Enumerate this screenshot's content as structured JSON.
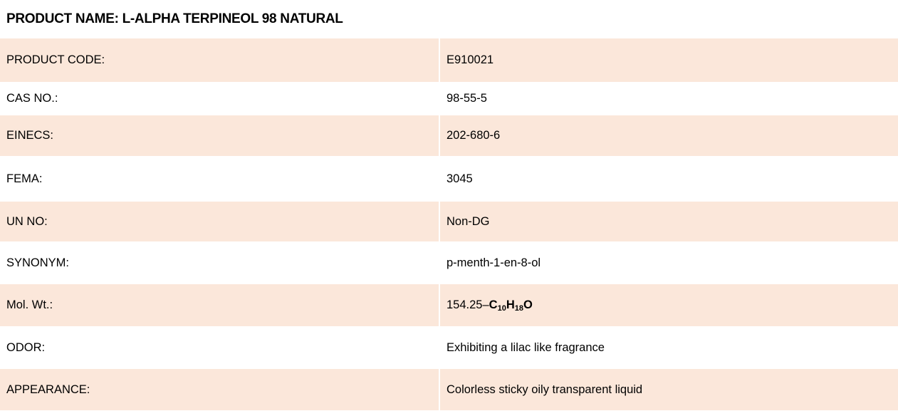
{
  "header": {
    "title": "PRODUCT NAME: L-ALPHA TERPINEOL 98 NATURAL"
  },
  "table": {
    "rows": [
      {
        "label": "PRODUCT CODE:",
        "value": "E910021"
      },
      {
        "label": "CAS NO.:",
        "value": "98-55-5"
      },
      {
        "label": "EINECS:",
        "value": "202-680-6"
      },
      {
        "label": "FEMA:",
        "value": "3045"
      },
      {
        "label": "UN NO:",
        "value": "Non-DG"
      },
      {
        "label": "SYNONYM:",
        "value": "p-menth-1-en-8-ol"
      },
      {
        "label": "Mol. Wt.:",
        "value": [
          {
            "text": "154.25–"
          },
          {
            "text": "C",
            "bold": true
          },
          {
            "text": "10",
            "bold": true,
            "sub": true
          },
          {
            "text": "H",
            "bold": true
          },
          {
            "text": "18",
            "bold": true,
            "sub": true
          },
          {
            "text": "O",
            "bold": true
          }
        ]
      },
      {
        "label": "ODOR:",
        "value": "Exhibiting a lilac like fragrance"
      },
      {
        "label": "APPEARANCE:",
        "value": "Colorless sticky oily transparent liquid"
      }
    ]
  }
}
